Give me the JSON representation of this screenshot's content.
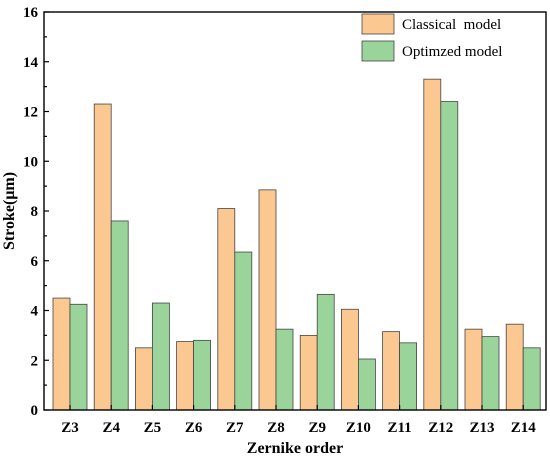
{
  "chart_data": {
    "type": "bar",
    "xlabel": "Zernike order",
    "ylabel": "Stroke(μm)",
    "ylim": [
      0,
      16
    ],
    "yticks": [
      0,
      2,
      4,
      6,
      8,
      10,
      12,
      14,
      16
    ],
    "categories": [
      "Z3",
      "Z4",
      "Z5",
      "Z6",
      "Z7",
      "Z8",
      "Z9",
      "Z10",
      "Z11",
      "Z12",
      "Z13",
      "Z14"
    ],
    "series": [
      {
        "name": "Classical  model",
        "color": "#FBC892",
        "values": [
          4.5,
          12.3,
          2.5,
          2.75,
          8.1,
          8.85,
          3.0,
          4.05,
          3.15,
          13.3,
          3.25,
          3.45
        ]
      },
      {
        "name": "Optimzed model",
        "color": "#9AD49B",
        "values": [
          4.25,
          7.6,
          4.3,
          2.8,
          6.35,
          3.25,
          4.65,
          2.05,
          2.7,
          12.4,
          2.95,
          2.5
        ]
      }
    ],
    "legend_position": "top-right",
    "grid": false
  }
}
